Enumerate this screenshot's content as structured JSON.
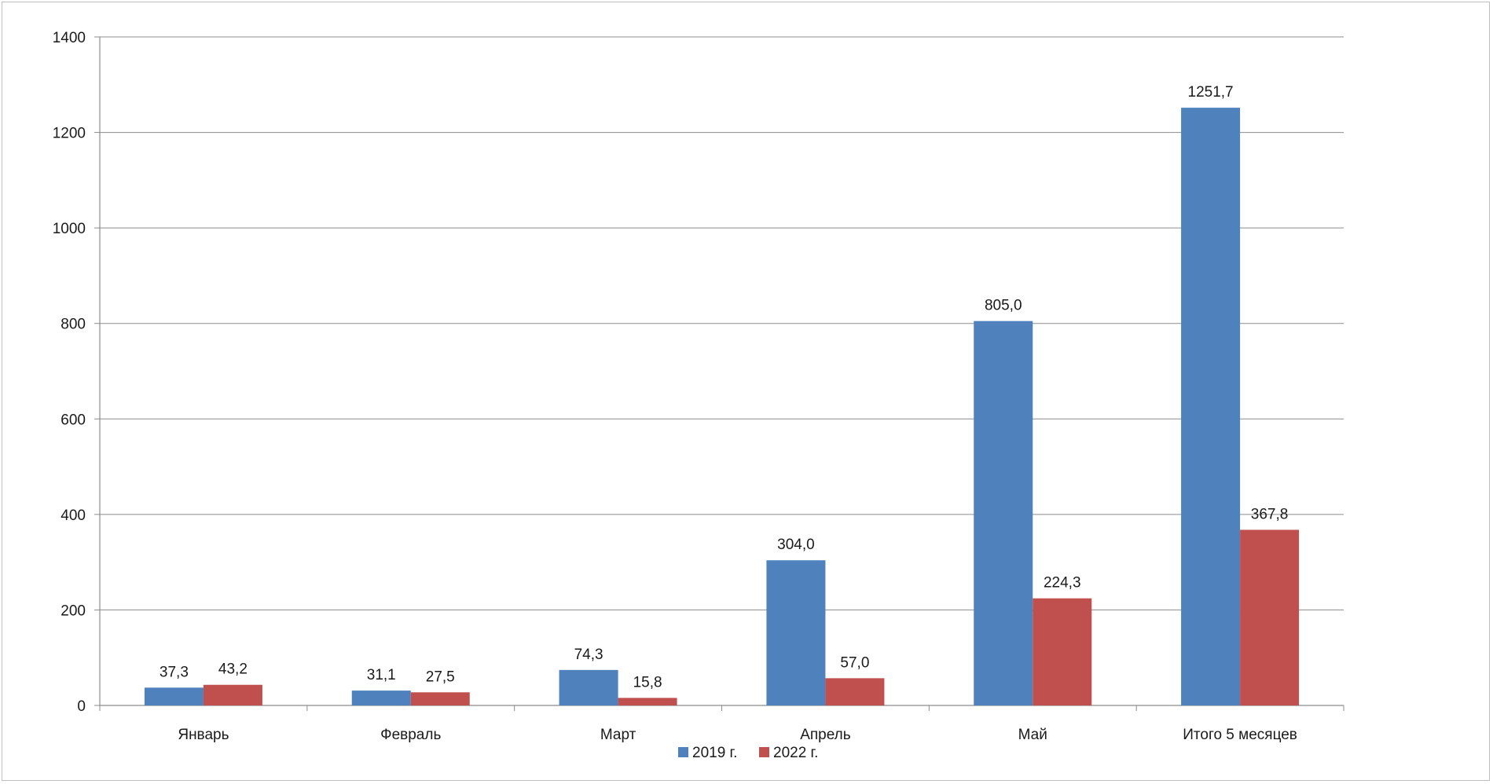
{
  "chart_data": {
    "type": "bar",
    "categories": [
      "Январь",
      "Февраль",
      "Март",
      "Апрель",
      "Май",
      "Итого 5 месяцев"
    ],
    "series": [
      {
        "name": "2019 г.",
        "color": "#4f81bd",
        "values": [
          37.3,
          31.1,
          74.3,
          304.0,
          805.0,
          1251.7
        ],
        "labels": [
          "37,3",
          "31,1",
          "74,3",
          "304,0",
          "805,0",
          "1251,7"
        ]
      },
      {
        "name": "2022 г.",
        "color": "#c0504d",
        "values": [
          43.2,
          27.5,
          15.8,
          57.0,
          224.3,
          367.8
        ],
        "labels": [
          "43,2",
          "27,5",
          "15,8",
          "57,0",
          "224,3",
          "367,8"
        ]
      }
    ],
    "title": "",
    "xlabel": "",
    "ylabel": "",
    "ylim": [
      0,
      1400
    ],
    "yticks": [
      0,
      200,
      400,
      600,
      800,
      1000,
      1200,
      1400
    ],
    "grid": true,
    "legend_position": "bottom"
  }
}
